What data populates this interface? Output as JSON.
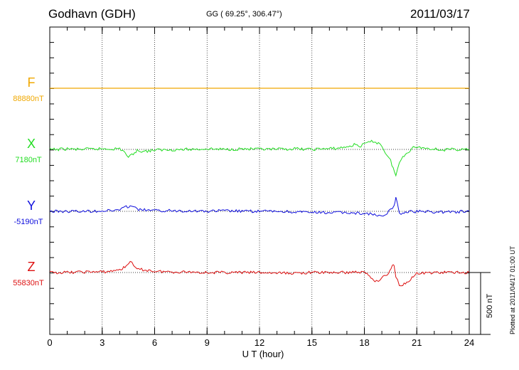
{
  "header": {
    "station": "Godhavn (GDH)",
    "coords": "GG ( 69.25°, 306.47°)",
    "date": "2011/03/17"
  },
  "footer": {
    "plotted": "Plotted at 2011/04/17 01:00 UT",
    "scale": "500 nT"
  },
  "chart_data": {
    "type": "line",
    "xlabel": "U T (hour)",
    "xlim": [
      0,
      24
    ],
    "xticks": [
      "0",
      "3",
      "6",
      "9",
      "12",
      "15",
      "18",
      "21",
      "24"
    ],
    "grid": true,
    "scale_bar_nT": 500,
    "components": [
      {
        "name": "F",
        "baseline": "88880nT",
        "color": "#f0a800",
        "data_gap": true,
        "points": [
          [
            0,
            0
          ],
          [
            24,
            0
          ]
        ]
      },
      {
        "name": "X",
        "baseline": "7180nT",
        "color": "#22dd22",
        "points": [
          [
            0,
            0
          ],
          [
            0.5,
            0
          ],
          [
            1,
            5
          ],
          [
            1.5,
            0
          ],
          [
            2,
            2
          ],
          [
            2.5,
            2
          ],
          [
            3,
            5
          ],
          [
            3.5,
            5
          ],
          [
            4,
            5
          ],
          [
            4.3,
            -20
          ],
          [
            4.5,
            -70
          ],
          [
            4.7,
            -40
          ],
          [
            5,
            -10
          ],
          [
            5.5,
            -15
          ],
          [
            6,
            -5
          ],
          [
            7,
            -2
          ],
          [
            8,
            0
          ],
          [
            9,
            5
          ],
          [
            10,
            0
          ],
          [
            11,
            5
          ],
          [
            12,
            0
          ],
          [
            13,
            0
          ],
          [
            14,
            5
          ],
          [
            15,
            0
          ],
          [
            15.5,
            5
          ],
          [
            16,
            5
          ],
          [
            16.5,
            10
          ],
          [
            17,
            20
          ],
          [
            17.5,
            40
          ],
          [
            17.8,
            25
          ],
          [
            18,
            45
          ],
          [
            18.5,
            65
          ],
          [
            18.8,
            50
          ],
          [
            19,
            30
          ],
          [
            19.2,
            -25
          ],
          [
            19.5,
            -90
          ],
          [
            19.8,
            -210
          ],
          [
            20,
            -110
          ],
          [
            20.2,
            -55
          ],
          [
            20.5,
            -20
          ],
          [
            20.8,
            15
          ],
          [
            21,
            20
          ],
          [
            21.5,
            10
          ],
          [
            22,
            5
          ],
          [
            22.5,
            -5
          ],
          [
            23,
            0
          ],
          [
            24,
            0
          ]
        ]
      },
      {
        "name": "Y",
        "baseline": "-5190nT",
        "color": "#1010dd",
        "points": [
          [
            0,
            0
          ],
          [
            1,
            0
          ],
          [
            2,
            0
          ],
          [
            3,
            5
          ],
          [
            3.5,
            5
          ],
          [
            4,
            15
          ],
          [
            4.3,
            30
          ],
          [
            4.6,
            45
          ],
          [
            4.8,
            35
          ],
          [
            5,
            15
          ],
          [
            5.5,
            10
          ],
          [
            6,
            5
          ],
          [
            7,
            5
          ],
          [
            8,
            5
          ],
          [
            9,
            0
          ],
          [
            10,
            5
          ],
          [
            11,
            0
          ],
          [
            12,
            0
          ],
          [
            13,
            0
          ],
          [
            14,
            -5
          ],
          [
            15,
            -10
          ],
          [
            16,
            -10
          ],
          [
            17,
            -10
          ],
          [
            17.5,
            -15
          ],
          [
            18,
            -15
          ],
          [
            18.5,
            -25
          ],
          [
            19,
            -45
          ],
          [
            19.3,
            -20
          ],
          [
            19.5,
            15
          ],
          [
            19.7,
            40
          ],
          [
            19.8,
            115
          ],
          [
            19.9,
            60
          ],
          [
            20,
            -20
          ],
          [
            20.2,
            -10
          ],
          [
            20.5,
            -5
          ],
          [
            21,
            0
          ],
          [
            22,
            -5
          ],
          [
            23,
            -5
          ],
          [
            24,
            0
          ]
        ]
      },
      {
        "name": "Z",
        "baseline": "55830nT",
        "color": "#dd1010",
        "points": [
          [
            0,
            0
          ],
          [
            1,
            0
          ],
          [
            2,
            5
          ],
          [
            3,
            5
          ],
          [
            3.5,
            10
          ],
          [
            4,
            25
          ],
          [
            4.3,
            40
          ],
          [
            4.6,
            95
          ],
          [
            4.8,
            50
          ],
          [
            5,
            25
          ],
          [
            5.5,
            20
          ],
          [
            6,
            10
          ],
          [
            7,
            5
          ],
          [
            8,
            5
          ],
          [
            9,
            0
          ],
          [
            10,
            0
          ],
          [
            11,
            0
          ],
          [
            12,
            0
          ],
          [
            13,
            -5
          ],
          [
            14,
            -5
          ],
          [
            15,
            0
          ],
          [
            16,
            0
          ],
          [
            17,
            0
          ],
          [
            17.5,
            5
          ],
          [
            18,
            0
          ],
          [
            18.3,
            -25
          ],
          [
            18.6,
            -70
          ],
          [
            18.8,
            -60
          ],
          [
            19,
            -40
          ],
          [
            19.3,
            -20
          ],
          [
            19.6,
            50
          ],
          [
            19.7,
            60
          ],
          [
            19.8,
            -30
          ],
          [
            20,
            -95
          ],
          [
            20.2,
            -100
          ],
          [
            20.5,
            -70
          ],
          [
            20.8,
            -30
          ],
          [
            21,
            -10
          ],
          [
            21.5,
            -5
          ],
          [
            22,
            0
          ],
          [
            23,
            0
          ],
          [
            24,
            0
          ]
        ]
      }
    ]
  }
}
